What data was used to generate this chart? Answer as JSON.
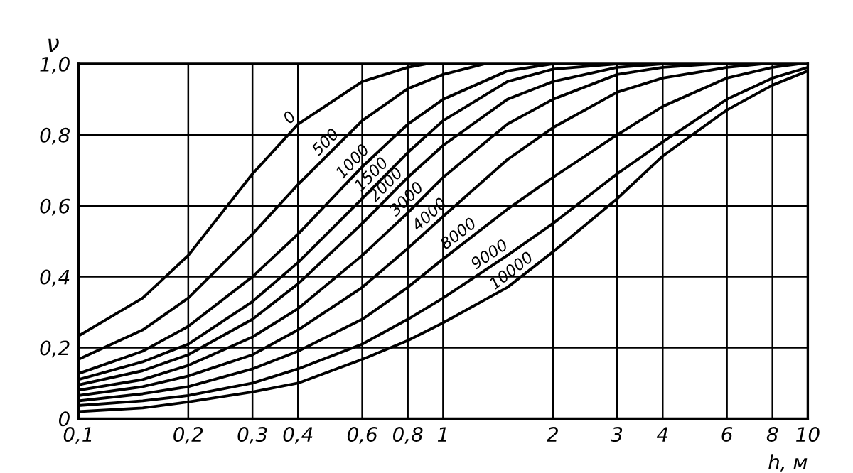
{
  "chart_data": {
    "type": "line",
    "xlabel": "h, м",
    "ylabel": "ν",
    "log": "x",
    "grid": true,
    "legend": false,
    "marker": "none",
    "line_style": "solid",
    "xlim": [
      0.1,
      10
    ],
    "ylim": [
      0,
      1.0
    ],
    "xticks": [
      {
        "value": 0.1,
        "label": "0,1"
      },
      {
        "value": 0.2,
        "label": "0,2"
      },
      {
        "value": 0.3,
        "label": "0,3"
      },
      {
        "value": 0.4,
        "label": "0,4"
      },
      {
        "value": 0.6,
        "label": "0,6"
      },
      {
        "value": 0.8,
        "label": "0,8"
      },
      1,
      2,
      3,
      4,
      6,
      8,
      10
    ],
    "yticks": [
      0,
      {
        "value": 0.2,
        "label": "0,2"
      },
      {
        "value": 0.4,
        "label": "0,4"
      },
      {
        "value": 0.6,
        "label": "0,6"
      },
      {
        "value": 0.8,
        "label": "0,8"
      },
      {
        "value": 1.0,
        "label": "1,0"
      }
    ],
    "series": [
      {
        "name": "0",
        "color": "#000000",
        "x": [
          0.1,
          0.15,
          0.2,
          0.3,
          0.4,
          0.6,
          0.8,
          0.9
        ],
        "values": [
          0.233,
          0.34,
          0.46,
          0.69,
          0.83,
          0.95,
          0.99,
          1.0
        ]
      },
      {
        "name": "500",
        "color": "#000000",
        "x": [
          0.1,
          0.15,
          0.2,
          0.3,
          0.4,
          0.6,
          0.8,
          1,
          1.3
        ],
        "values": [
          0.167,
          0.25,
          0.34,
          0.52,
          0.66,
          0.84,
          0.93,
          0.97,
          1.0
        ]
      },
      {
        "name": "1000",
        "color": "#000000",
        "x": [
          0.1,
          0.15,
          0.2,
          0.3,
          0.4,
          0.6,
          0.8,
          1,
          1.5,
          2
        ],
        "values": [
          0.127,
          0.19,
          0.26,
          0.4,
          0.52,
          0.71,
          0.83,
          0.9,
          0.98,
          1.0
        ]
      },
      {
        "name": "1500",
        "color": "#000000",
        "x": [
          0.1,
          0.15,
          0.2,
          0.3,
          0.4,
          0.6,
          0.8,
          1,
          1.5,
          2,
          3
        ],
        "values": [
          0.11,
          0.16,
          0.21,
          0.33,
          0.44,
          0.62,
          0.75,
          0.84,
          0.95,
          0.985,
          1.0
        ]
      },
      {
        "name": "2000",
        "color": "#000000",
        "x": [
          0.1,
          0.15,
          0.2,
          0.3,
          0.4,
          0.6,
          0.8,
          1,
          1.5,
          2,
          3,
          4
        ],
        "values": [
          0.095,
          0.135,
          0.18,
          0.28,
          0.38,
          0.55,
          0.68,
          0.77,
          0.9,
          0.95,
          0.99,
          1.0
        ]
      },
      {
        "name": "3000",
        "color": "#000000",
        "x": [
          0.1,
          0.15,
          0.2,
          0.3,
          0.4,
          0.6,
          0.8,
          1,
          1.5,
          2,
          3,
          4,
          5.5
        ],
        "values": [
          0.08,
          0.11,
          0.15,
          0.23,
          0.31,
          0.46,
          0.58,
          0.68,
          0.83,
          0.9,
          0.97,
          0.99,
          1.0
        ]
      },
      {
        "name": "4000",
        "color": "#000000",
        "x": [
          0.1,
          0.15,
          0.2,
          0.3,
          0.4,
          0.6,
          0.8,
          1,
          1.5,
          2,
          3,
          4,
          6,
          7.5
        ],
        "values": [
          0.065,
          0.09,
          0.12,
          0.18,
          0.25,
          0.37,
          0.48,
          0.57,
          0.73,
          0.82,
          0.92,
          0.96,
          0.99,
          1.0
        ]
      },
      {
        "name": "8000",
        "color": "#000000",
        "x": [
          0.1,
          0.15,
          0.2,
          0.3,
          0.4,
          0.6,
          0.8,
          1,
          1.5,
          2,
          3,
          4,
          6,
          8,
          9.5
        ],
        "values": [
          0.05,
          0.07,
          0.09,
          0.14,
          0.19,
          0.28,
          0.37,
          0.45,
          0.59,
          0.68,
          0.8,
          0.88,
          0.96,
          0.99,
          1.0
        ]
      },
      {
        "name": "9000",
        "color": "#000000",
        "x": [
          0.1,
          0.15,
          0.2,
          0.3,
          0.4,
          0.6,
          0.8,
          1,
          1.5,
          2,
          3,
          4,
          6,
          8,
          10
        ],
        "values": [
          0.037,
          0.05,
          0.065,
          0.1,
          0.14,
          0.21,
          0.28,
          0.34,
          0.46,
          0.55,
          0.69,
          0.78,
          0.9,
          0.96,
          0.99
        ]
      },
      {
        "name": "10000",
        "color": "#000000",
        "x": [
          0.1,
          0.15,
          0.2,
          0.3,
          0.4,
          0.6,
          0.8,
          1,
          1.5,
          2,
          3,
          4,
          6,
          8,
          10
        ],
        "values": [
          0.02,
          0.03,
          0.047,
          0.075,
          0.1,
          0.167,
          0.22,
          0.27,
          0.37,
          0.47,
          0.62,
          0.74,
          0.87,
          0.94,
          0.98
        ]
      }
    ]
  }
}
